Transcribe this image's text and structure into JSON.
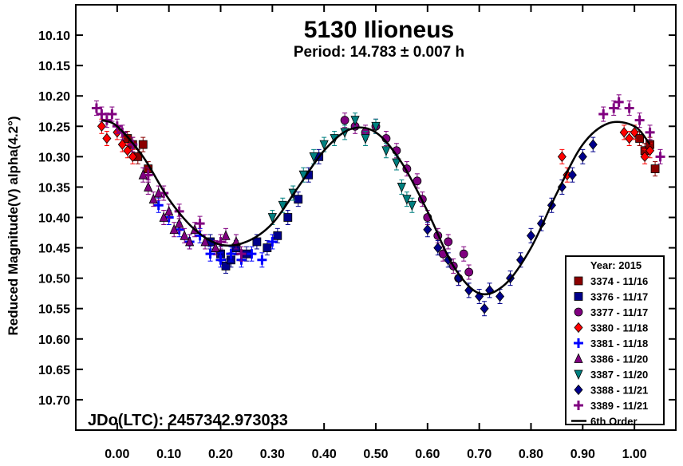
{
  "chart_data": {
    "type": "scatter",
    "title": "5130 Ilioneus",
    "subtitle": "Period: 14.783 ± 0.007 h",
    "xlabel": "",
    "ylabel": "Reduced Magnitude(V) alpha(4.2°)",
    "annotation": "JDo(LTC): 2457342.973033",
    "xlim": [
      -0.08,
      1.08
    ],
    "ylim": [
      10.05,
      10.75
    ],
    "y_inverted": true,
    "x_ticks": [
      "0.00",
      "0.10",
      "0.20",
      "0.30",
      "0.40",
      "0.50",
      "0.60",
      "0.70",
      "0.80",
      "0.90",
      "1.00"
    ],
    "y_ticks": [
      "10.10",
      "10.15",
      "10.20",
      "10.25",
      "10.30",
      "10.35",
      "10.40",
      "10.45",
      "10.50",
      "10.55",
      "10.60",
      "10.65",
      "10.70"
    ],
    "grid": false,
    "legend_title": "Year: 2015",
    "legend_position": "bottom-right",
    "series": [
      {
        "name": "3374 - 11/16",
        "color": "#8b0000",
        "marker": "square",
        "x": [
          0.02,
          0.03,
          0.04,
          0.05,
          0.06,
          1.01,
          1.02,
          1.03,
          1.04
        ],
        "y": [
          10.27,
          10.28,
          10.3,
          10.28,
          10.32,
          10.27,
          10.29,
          10.28,
          10.32
        ]
      },
      {
        "name": "3376 - 11/17",
        "color": "#00008b",
        "marker": "square",
        "x": [
          0.18,
          0.2,
          0.21,
          0.22,
          0.23,
          0.25,
          0.27,
          0.29,
          0.31,
          0.33,
          0.35,
          0.37,
          0.39
        ],
        "y": [
          10.44,
          10.46,
          10.48,
          10.47,
          10.45,
          10.46,
          10.44,
          10.45,
          10.43,
          10.4,
          10.37,
          10.33,
          10.3
        ]
      },
      {
        "name": "3377 - 11/17",
        "color": "#800080",
        "marker": "circle",
        "x": [
          0.44,
          0.46,
          0.48,
          0.5,
          0.52,
          0.54,
          0.56,
          0.58,
          0.59,
          0.6,
          0.62,
          0.63,
          0.64,
          0.65,
          0.66,
          0.67,
          0.68
        ],
        "y": [
          10.24,
          10.25,
          10.26,
          10.25,
          10.27,
          10.29,
          10.32,
          10.34,
          10.37,
          10.4,
          10.43,
          10.46,
          10.44,
          10.48,
          10.5,
          10.46,
          10.49
        ]
      },
      {
        "name": "3380 - 11/18",
        "color": "#ff0000",
        "marker": "diamond",
        "x": [
          -0.03,
          -0.02,
          0.0,
          0.01,
          0.02,
          0.03,
          0.86,
          0.87,
          0.98,
          0.99,
          1.0,
          1.02,
          1.03
        ],
        "y": [
          10.25,
          10.27,
          10.26,
          10.28,
          10.29,
          10.3,
          10.3,
          10.33,
          10.26,
          10.27,
          10.26,
          10.3,
          10.29
        ]
      },
      {
        "name": "3381 - 11/18",
        "color": "#0000ff",
        "marker": "plus",
        "x": [
          0.08,
          0.1,
          0.12,
          0.14,
          0.16,
          0.18,
          0.2,
          0.22,
          0.24,
          0.26,
          0.28,
          0.3
        ],
        "y": [
          10.38,
          10.4,
          10.42,
          10.44,
          10.43,
          10.46,
          10.47,
          10.46,
          10.47,
          10.46,
          10.47,
          10.44
        ]
      },
      {
        "name": "3386 - 11/20",
        "color": "#800080",
        "marker": "triangle-up",
        "x": [
          0.05,
          0.06,
          0.07,
          0.08,
          0.09,
          0.1,
          0.11,
          0.12,
          0.13,
          0.14,
          0.15,
          0.17,
          0.19,
          0.21,
          0.23
        ],
        "y": [
          10.33,
          10.35,
          10.37,
          10.36,
          10.4,
          10.39,
          10.42,
          10.41,
          10.43,
          10.44,
          10.42,
          10.44,
          10.45,
          10.43,
          10.44
        ]
      },
      {
        "name": "3387 - 11/20",
        "color": "#008080",
        "marker": "triangle-down",
        "x": [
          0.3,
          0.32,
          0.34,
          0.36,
          0.38,
          0.4,
          0.42,
          0.44,
          0.46,
          0.48,
          0.5,
          0.52,
          0.54,
          0.55,
          0.56,
          0.57
        ],
        "y": [
          10.4,
          10.38,
          10.36,
          10.33,
          10.3,
          10.28,
          10.27,
          10.26,
          10.24,
          10.27,
          10.25,
          10.29,
          10.31,
          10.35,
          10.37,
          10.38
        ]
      },
      {
        "name": "3388 - 11/21",
        "color": "#00008b",
        "marker": "diamond",
        "x": [
          0.6,
          0.62,
          0.64,
          0.66,
          0.68,
          0.7,
          0.71,
          0.72,
          0.74,
          0.76,
          0.78,
          0.8,
          0.82,
          0.84,
          0.86,
          0.88,
          0.9,
          0.92
        ],
        "y": [
          10.42,
          10.45,
          10.47,
          10.5,
          10.52,
          10.53,
          10.55,
          10.52,
          10.53,
          10.5,
          10.47,
          10.43,
          10.41,
          10.38,
          10.35,
          10.33,
          10.3,
          10.28
        ]
      },
      {
        "name": "3389 - 11/21",
        "color": "#800080",
        "marker": "plus",
        "x": [
          -0.04,
          -0.03,
          -0.02,
          -0.01,
          0.0,
          0.01,
          0.03,
          0.06,
          0.09,
          0.12,
          0.16,
          0.2,
          0.24,
          0.94,
          0.96,
          0.97,
          0.99,
          1.01,
          1.03,
          1.05
        ],
        "y": [
          10.22,
          10.23,
          10.24,
          10.23,
          10.25,
          10.26,
          10.28,
          10.33,
          10.36,
          10.39,
          10.41,
          10.44,
          10.46,
          10.23,
          10.22,
          10.21,
          10.22,
          10.24,
          10.26,
          10.3
        ]
      }
    ],
    "fit": {
      "name": "6th Order",
      "color": "#000000",
      "x": [
        -0.03,
        0.0,
        0.05,
        0.1,
        0.15,
        0.2,
        0.25,
        0.3,
        0.35,
        0.4,
        0.45,
        0.5,
        0.55,
        0.6,
        0.65,
        0.7,
        0.75,
        0.8,
        0.85,
        0.9,
        0.95,
        1.0,
        1.03
      ],
      "y": [
        10.24,
        10.25,
        10.3,
        10.37,
        10.42,
        10.445,
        10.44,
        10.41,
        10.35,
        10.29,
        10.255,
        10.26,
        10.31,
        10.39,
        10.48,
        10.525,
        10.51,
        10.45,
        10.36,
        10.28,
        10.245,
        10.25,
        10.28
      ]
    }
  }
}
